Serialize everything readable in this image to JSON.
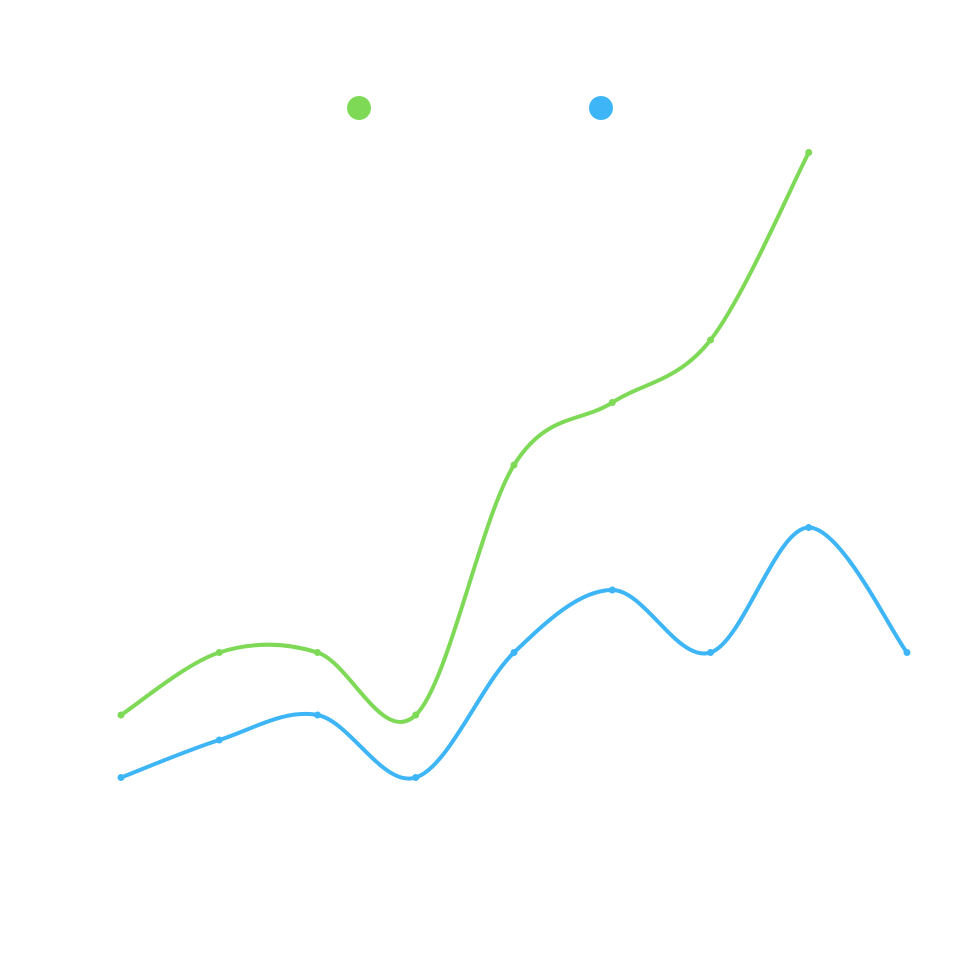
{
  "chart_data": {
    "type": "line",
    "categories": [
      null,
      null,
      null,
      null,
      null,
      null,
      null,
      null,
      null
    ],
    "series": [
      {
        "color": "#7ed957",
        "values": [
          2,
          3,
          3,
          2,
          6,
          7,
          8,
          11,
          null
        ]
      },
      {
        "color": "#3db5f6",
        "values": [
          1,
          1.6,
          2,
          1,
          3,
          4,
          3,
          5,
          3
        ]
      }
    ],
    "ylim": [
      0,
      12
    ],
    "smooth": true,
    "legend": "top"
  }
}
